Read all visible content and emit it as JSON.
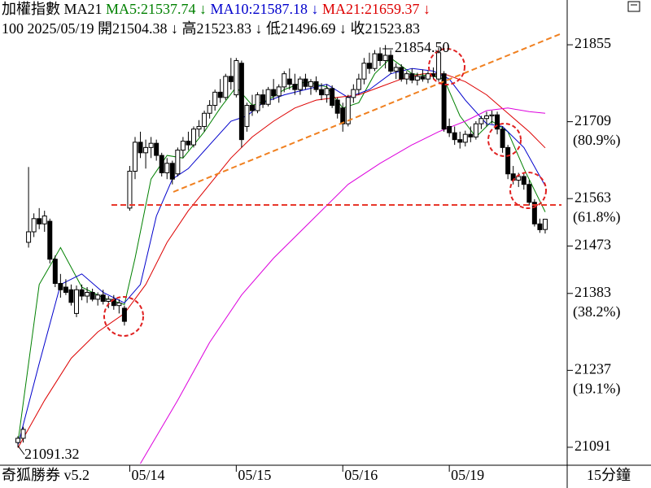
{
  "chart_data": {
    "type": "candlestick",
    "header": [
      "加權指數 MA21",
      "MA5:21537.74 ↓",
      "MA10:21587.18 ↓",
      "MA21:21659.37 ↓"
    ],
    "header_colors": [
      "#000000",
      "#008000",
      "#0000cc",
      "#dd0000"
    ],
    "info_line": "100 2025/05/19 開21504.38 ↓ 高21523.83 ↓ 低21496.69 ↓ 收21523.83",
    "annotations": [
      "21854.50",
      "21091.32"
    ],
    "footer_left": "奇狐勝券 v5.2",
    "footer_right": "15分鐘",
    "xticks": [
      {
        "value": 21,
        "label": "05/14"
      },
      {
        "value": 41,
        "label": "05/15"
      },
      {
        "value": 61,
        "label": "05/16"
      },
      {
        "value": 81,
        "label": "05/19"
      }
    ],
    "xlim": [
      -1,
      105
    ],
    "ylim": [
      21060,
      21940
    ],
    "yticks": [
      21855,
      21709,
      21563,
      21473,
      21383,
      21237,
      21091
    ],
    "fib_labels": [
      {
        "value": 21709,
        "label": "(80.9%)"
      },
      {
        "value": 21563,
        "label": "(61.8%)"
      },
      {
        "value": 21383,
        "label": "(38.2%)"
      },
      {
        "value": 21237,
        "label": "(19.1%)"
      }
    ],
    "up_color": "#ffffff",
    "down_color": "#000000",
    "ohlc": [
      [
        21100,
        21112,
        21091.32,
        21108
      ],
      [
        21108,
        21130,
        21100,
        21125
      ],
      [
        21480,
        21623,
        21470,
        21500
      ],
      [
        21500,
        21535,
        21490,
        21525
      ],
      [
        21525,
        21545,
        21505,
        21515
      ],
      [
        21515,
        21540,
        21500,
        21530
      ],
      [
        21520,
        21525,
        21440,
        21448
      ],
      [
        21448,
        21455,
        21395,
        21402
      ],
      [
        21402,
        21420,
        21375,
        21390
      ],
      [
        21395,
        21410,
        21380,
        21385
      ],
      [
        21390,
        21400,
        21360,
        21366
      ],
      [
        21345,
        21398,
        21338,
        21390
      ],
      [
        21390,
        21400,
        21370,
        21378
      ],
      [
        21378,
        21395,
        21365,
        21385
      ],
      [
        21385,
        21392,
        21368,
        21372
      ],
      [
        21372,
        21385,
        21360,
        21380
      ],
      [
        21380,
        21390,
        21362,
        21368
      ],
      [
        21368,
        21378,
        21355,
        21372
      ],
      [
        21372,
        21380,
        21352,
        21360
      ],
      [
        21360,
        21372,
        21345,
        21365
      ],
      [
        21355,
        21360,
        21322,
        21330
      ],
      [
        21545,
        21625,
        21540,
        21615
      ],
      [
        21615,
        21680,
        21600,
        21670
      ],
      [
        21670,
        21690,
        21640,
        21650
      ],
      [
        21650,
        21675,
        21620,
        21660
      ],
      [
        21660,
        21680,
        21640,
        21668
      ],
      [
        21668,
        21675,
        21635,
        21645
      ],
      [
        21645,
        21650,
        21605,
        21612
      ],
      [
        21612,
        21640,
        21600,
        21630
      ],
      [
        21630,
        21635,
        21590,
        21600
      ],
      [
        21610,
        21660,
        21605,
        21655
      ],
      [
        21655,
        21680,
        21640,
        21672
      ],
      [
        21672,
        21690,
        21655,
        21665
      ],
      [
        21665,
        21700,
        21660,
        21695
      ],
      [
        21695,
        21712,
        21680,
        21700
      ],
      [
        21700,
        21730,
        21690,
        21725
      ],
      [
        21725,
        21750,
        21715,
        21740
      ],
      [
        21740,
        21770,
        21730,
        21765
      ],
      [
        21765,
        21790,
        21745,
        21755
      ],
      [
        21755,
        21800,
        21750,
        21795
      ],
      [
        21795,
        21830,
        21770,
        21785
      ],
      [
        21760,
        21830,
        21755,
        21825
      ],
      [
        21820,
        21825,
        21660,
        21675
      ],
      [
        21700,
        21745,
        21690,
        21740
      ],
      [
        21740,
        21760,
        21720,
        21730
      ],
      [
        21730,
        21765,
        21725,
        21760
      ],
      [
        21760,
        21770,
        21735,
        21742
      ],
      [
        21742,
        21775,
        21738,
        21770
      ],
      [
        21770,
        21790,
        21750,
        21758
      ],
      [
        21758,
        21780,
        21745,
        21775
      ],
      [
        21775,
        21805,
        21765,
        21800
      ],
      [
        21790,
        21810,
        21770,
        21780
      ],
      [
        21780,
        21800,
        21760,
        21770
      ],
      [
        21770,
        21795,
        21760,
        21790
      ],
      [
        21790,
        21800,
        21770,
        21776
      ],
      [
        21776,
        21790,
        21760,
        21785
      ],
      [
        21785,
        21795,
        21765,
        21770
      ],
      [
        21770,
        21782,
        21750,
        21760
      ],
      [
        21760,
        21780,
        21745,
        21772
      ],
      [
        21772,
        21778,
        21735,
        21740
      ],
      [
        21750,
        21755,
        21715,
        21725
      ],
      [
        21735,
        21745,
        21690,
        21705
      ],
      [
        21705,
        21760,
        21700,
        21755
      ],
      [
        21755,
        21780,
        21745,
        21770
      ],
      [
        21770,
        21800,
        21760,
        21790
      ],
      [
        21790,
        21830,
        21780,
        21820
      ],
      [
        21820,
        21840,
        21800,
        21810
      ],
      [
        21810,
        21845,
        21805,
        21838
      ],
      [
        21838,
        21850,
        21815,
        21825
      ],
      [
        21825,
        21854.5,
        21810,
        21835
      ],
      [
        21835,
        21845,
        21800,
        21805
      ],
      [
        21805,
        21820,
        21790,
        21812
      ],
      [
        21812,
        21818,
        21785,
        21790
      ],
      [
        21790,
        21805,
        21780,
        21800
      ],
      [
        21800,
        21810,
        21782,
        21788
      ],
      [
        21788,
        21802,
        21778,
        21795
      ],
      [
        21795,
        21808,
        21785,
        21790
      ],
      [
        21790,
        21805,
        21782,
        21800
      ],
      [
        21800,
        21812,
        21790,
        21795
      ],
      [
        21790,
        21850,
        21785,
        21840
      ],
      [
        21800,
        21805,
        21690,
        21695
      ],
      [
        21700,
        21715,
        21680,
        21688
      ],
      [
        21688,
        21700,
        21665,
        21675
      ],
      [
        21675,
        21690,
        21658,
        21670
      ],
      [
        21670,
        21692,
        21662,
        21685
      ],
      [
        21685,
        21700,
        21670,
        21680
      ],
      [
        21680,
        21710,
        21675,
        21705
      ],
      [
        21705,
        21720,
        21695,
        21715
      ],
      [
        21715,
        21728,
        21700,
        21720
      ],
      [
        21720,
        21730,
        21705,
        21722
      ],
      [
        21722,
        21728,
        21685,
        21695
      ],
      [
        21695,
        21700,
        21650,
        21660
      ],
      [
        21660,
        21665,
        21600,
        21610
      ],
      [
        21610,
        21625,
        21590,
        21598
      ],
      [
        21598,
        21612,
        21585,
        21605
      ],
      [
        21605,
        21610,
        21580,
        21590
      ],
      [
        21590,
        21598,
        21550,
        21556
      ],
      [
        21556,
        21562,
        21510,
        21515
      ],
      [
        21515,
        21525,
        21498,
        21504
      ],
      [
        21504.38,
        21523.83,
        21496.69,
        21523.83
      ]
    ],
    "lines": [
      {
        "color": "#008000",
        "x": [
          0,
          4,
          8,
          12,
          16,
          20,
          22,
          25,
          28,
          31,
          35,
          38,
          41,
          44,
          47,
          50,
          54,
          58,
          61,
          64,
          67,
          70,
          74,
          78,
          80,
          83,
          86,
          89,
          92,
          95,
          99
        ],
        "values": [
          21100,
          21400,
          21470,
          21395,
          21375,
          21362,
          21450,
          21600,
          21645,
          21640,
          21690,
          21735,
          21775,
          21740,
          21750,
          21770,
          21785,
          21775,
          21735,
          21745,
          21800,
          21830,
          21800,
          21795,
          21790,
          21720,
          21680,
          21710,
          21690,
          21620,
          21537.74
        ]
      },
      {
        "color": "#0000cc",
        "x": [
          0,
          4,
          8,
          12,
          16,
          20,
          23,
          26,
          29,
          32,
          36,
          40,
          43,
          46,
          50,
          54,
          58,
          62,
          66,
          70,
          74,
          78,
          81,
          84,
          88,
          91,
          95,
          99
        ],
        "values": [
          21095,
          21250,
          21400,
          21420,
          21385,
          21365,
          21400,
          21530,
          21600,
          21620,
          21665,
          21710,
          21720,
          21745,
          21760,
          21770,
          21780,
          21755,
          21770,
          21800,
          21810,
          21805,
          21790,
          21750,
          21705,
          21700,
          21660,
          21587.18
        ]
      },
      {
        "color": "#dd0000",
        "x": [
          0,
          5,
          10,
          15,
          20,
          24,
          28,
          32,
          36,
          40,
          44,
          48,
          52,
          56,
          60,
          64,
          68,
          72,
          76,
          80,
          84,
          88,
          92,
          96,
          99
        ],
        "values": [
          21090,
          21180,
          21260,
          21310,
          21345,
          21400,
          21480,
          21540,
          21590,
          21640,
          21680,
          21710,
          21735,
          21750,
          21755,
          21760,
          21775,
          21790,
          21800,
          21800,
          21785,
          21760,
          21725,
          21690,
          21659.37
        ]
      },
      {
        "color": "#dd00dd",
        "x": [
          23,
          30,
          36,
          42,
          48,
          55,
          62,
          68,
          74,
          79,
          84,
          88,
          92,
          96,
          99
        ],
        "values": [
          21060,
          21180,
          21290,
          21380,
          21450,
          21520,
          21590,
          21630,
          21665,
          21690,
          21710,
          21730,
          21735,
          21728,
          21725
        ]
      }
    ]
  }
}
